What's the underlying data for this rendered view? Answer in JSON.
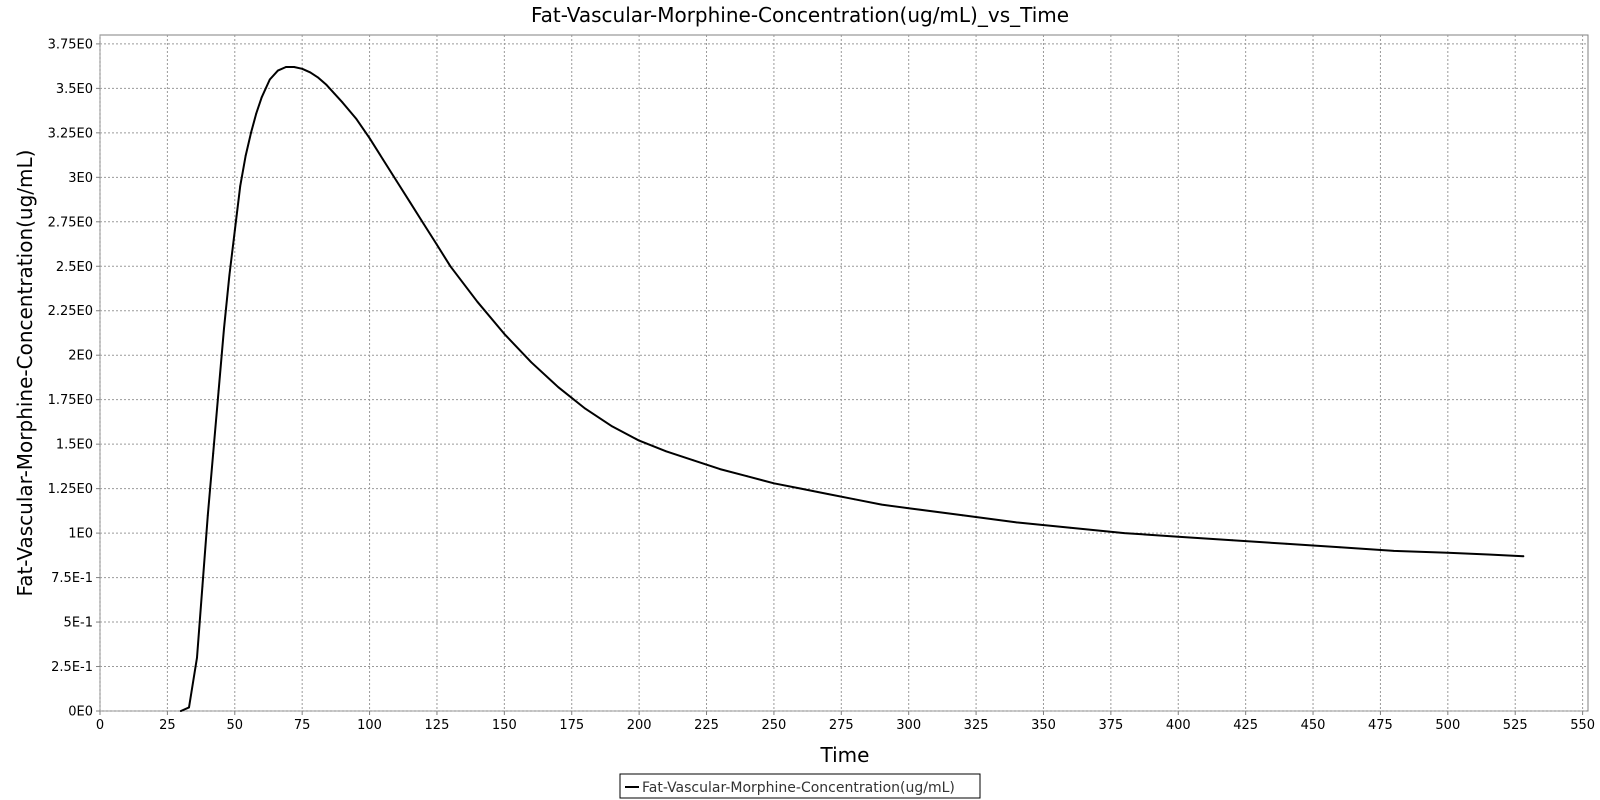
{
  "chart_data": {
    "type": "line",
    "title": "Fat-Vascular-Morphine-Concentration(ug/mL)_vs_Time",
    "xlabel": "Time",
    "ylabel": "Fat-Vascular-Morphine-Concentration(ug/mL)",
    "xlim": [
      0,
      552
    ],
    "ylim": [
      0,
      3.8
    ],
    "x_ticks": [
      0,
      25,
      50,
      75,
      100,
      125,
      150,
      175,
      200,
      225,
      250,
      275,
      300,
      325,
      350,
      375,
      400,
      425,
      450,
      475,
      500,
      525,
      550
    ],
    "y_ticks": [
      {
        "value": 0,
        "label": "0E0"
      },
      {
        "value": 0.25,
        "label": "2.5E-1"
      },
      {
        "value": 0.5,
        "label": "5E-1"
      },
      {
        "value": 0.75,
        "label": "7.5E-1"
      },
      {
        "value": 1.0,
        "label": "1E0"
      },
      {
        "value": 1.25,
        "label": "1.25E0"
      },
      {
        "value": 1.5,
        "label": "1.5E0"
      },
      {
        "value": 1.75,
        "label": "1.75E0"
      },
      {
        "value": 2.0,
        "label": "2E0"
      },
      {
        "value": 2.25,
        "label": "2.25E0"
      },
      {
        "value": 2.5,
        "label": "2.5E0"
      },
      {
        "value": 2.75,
        "label": "2.75E0"
      },
      {
        "value": 3.0,
        "label": "3E0"
      },
      {
        "value": 3.25,
        "label": "3.25E0"
      },
      {
        "value": 3.5,
        "label": "3.5E0"
      },
      {
        "value": 3.75,
        "label": "3.75E0"
      }
    ],
    "grid": true,
    "legend_position": "bottom",
    "series": [
      {
        "name": "Fat-Vascular-Morphine-Concentration(ug/mL)",
        "color": "#000000",
        "x": [
          30,
          33,
          36,
          38,
          40,
          42,
          44,
          46,
          48,
          50,
          52,
          54,
          56,
          58,
          60,
          63,
          66,
          69,
          72,
          75,
          78,
          81,
          84,
          87,
          90,
          95,
          100,
          105,
          110,
          115,
          120,
          125,
          130,
          140,
          150,
          160,
          170,
          180,
          190,
          200,
          210,
          220,
          230,
          240,
          250,
          260,
          270,
          280,
          290,
          300,
          320,
          340,
          360,
          380,
          400,
          420,
          440,
          460,
          480,
          500,
          515,
          528
        ],
        "values": [
          0.0,
          0.02,
          0.3,
          0.7,
          1.1,
          1.45,
          1.8,
          2.15,
          2.45,
          2.7,
          2.95,
          3.12,
          3.25,
          3.36,
          3.45,
          3.55,
          3.6,
          3.62,
          3.62,
          3.61,
          3.59,
          3.56,
          3.52,
          3.47,
          3.42,
          3.33,
          3.22,
          3.1,
          2.98,
          2.86,
          2.74,
          2.62,
          2.5,
          2.3,
          2.12,
          1.96,
          1.82,
          1.7,
          1.6,
          1.52,
          1.46,
          1.41,
          1.36,
          1.32,
          1.28,
          1.25,
          1.22,
          1.19,
          1.16,
          1.14,
          1.1,
          1.06,
          1.03,
          1.0,
          0.98,
          0.96,
          0.94,
          0.92,
          0.9,
          0.89,
          0.88,
          0.87
        ]
      }
    ]
  }
}
